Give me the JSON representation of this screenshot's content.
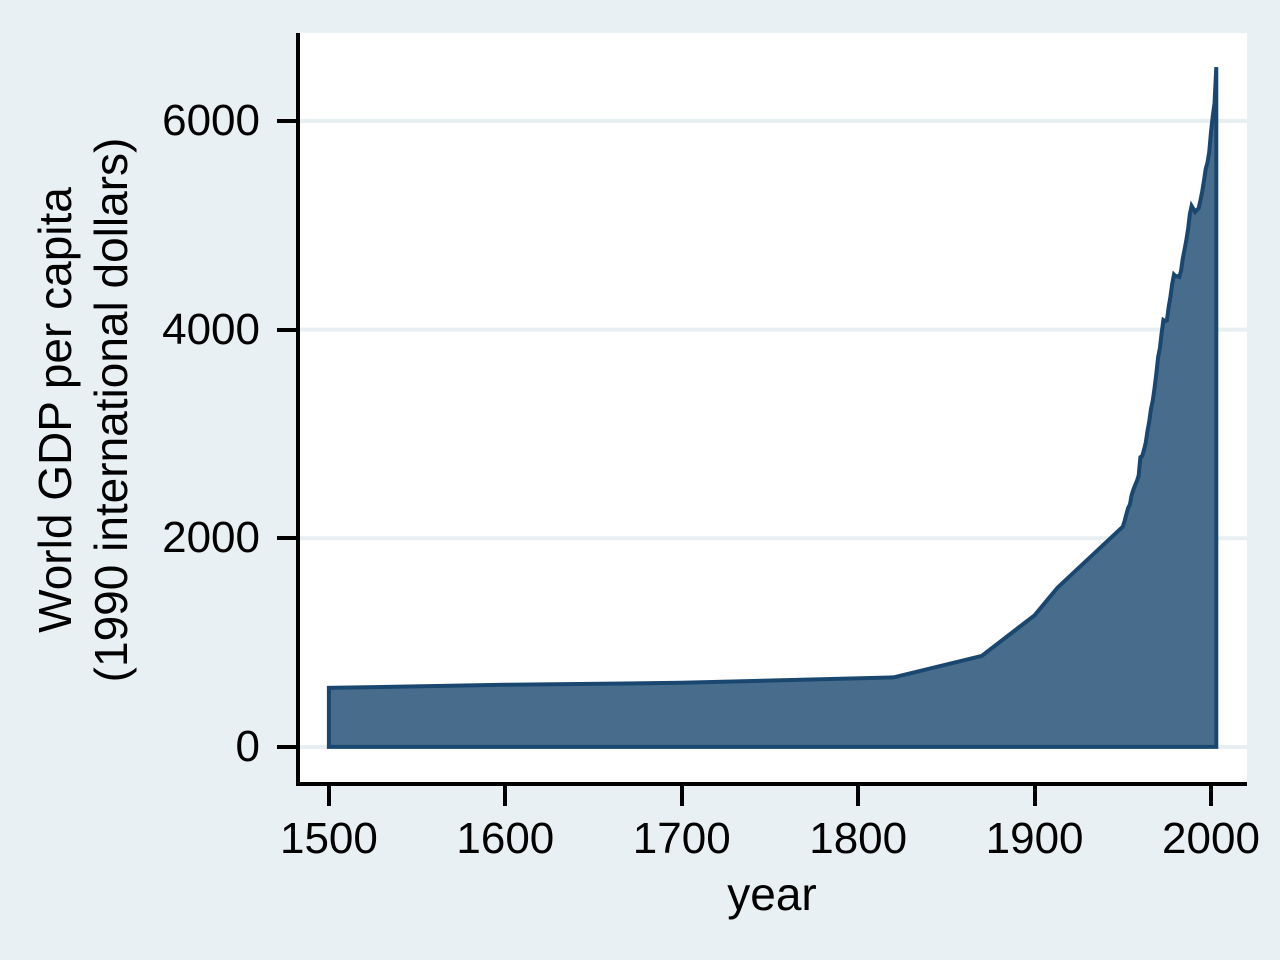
{
  "figure": {
    "background_color": "#e9f0f4",
    "plot_background_color": "#ffffff",
    "gridline_color": "#e8eff2",
    "axis_color": "#000000",
    "area_fill_color": "#486c8c",
    "area_border_color": "#1a476f"
  },
  "chart_data": {
    "type": "area",
    "title": "",
    "xlabel": "year",
    "ylabel_line1": "World GDP per capita",
    "ylabel_line2": "(1990 international dollars)",
    "legend": "none",
    "grid": "horizontal",
    "x_ticks": [
      1500,
      1600,
      1700,
      1800,
      1900,
      2000
    ],
    "y_ticks": [
      0,
      2000,
      4000,
      6000
    ],
    "xlim": [
      1481.9,
      2020.4
    ],
    "ylim": [
      -336,
      6843
    ],
    "series": [
      {
        "name": "World GDP per capita (1990 international dollars)",
        "baseline": 0,
        "points": [
          [
            1500,
            566
          ],
          [
            1600,
            596
          ],
          [
            1700,
            615
          ],
          [
            1820,
            667
          ],
          [
            1870,
            873
          ],
          [
            1900,
            1262
          ],
          [
            1913,
            1526
          ],
          [
            1950,
            2111
          ],
          [
            1951,
            2165
          ],
          [
            1952,
            2228
          ],
          [
            1953,
            2290
          ],
          [
            1954,
            2323
          ],
          [
            1955,
            2412
          ],
          [
            1956,
            2468
          ],
          [
            1957,
            2511
          ],
          [
            1958,
            2548
          ],
          [
            1959,
            2604
          ],
          [
            1960,
            2777
          ],
          [
            1961,
            2788
          ],
          [
            1962,
            2848
          ],
          [
            1963,
            2914
          ],
          [
            1964,
            3029
          ],
          [
            1965,
            3123
          ],
          [
            1966,
            3240
          ],
          [
            1967,
            3322
          ],
          [
            1968,
            3444
          ],
          [
            1969,
            3576
          ],
          [
            1970,
            3736
          ],
          [
            1971,
            3823
          ],
          [
            1972,
            3964
          ],
          [
            1973,
            4091
          ],
          [
            1974,
            4080
          ],
          [
            1975,
            4088
          ],
          [
            1976,
            4219
          ],
          [
            1977,
            4315
          ],
          [
            1978,
            4437
          ],
          [
            1979,
            4527
          ],
          [
            1980,
            4511
          ],
          [
            1981,
            4512
          ],
          [
            1982,
            4505
          ],
          [
            1983,
            4560
          ],
          [
            1984,
            4682
          ],
          [
            1985,
            4764
          ],
          [
            1986,
            4857
          ],
          [
            1987,
            4965
          ],
          [
            1988,
            5102
          ],
          [
            1989,
            5186
          ],
          [
            1990,
            5157
          ],
          [
            1991,
            5128
          ],
          [
            1992,
            5147
          ],
          [
            1993,
            5164
          ],
          [
            1994,
            5237
          ],
          [
            1995,
            5324
          ],
          [
            1996,
            5429
          ],
          [
            1997,
            5540
          ],
          [
            1998,
            5601
          ],
          [
            1999,
            5700
          ],
          [
            2000,
            5894
          ],
          [
            2001,
            6049
          ],
          [
            2002,
            6167
          ],
          [
            2003,
            6516
          ]
        ]
      }
    ]
  }
}
